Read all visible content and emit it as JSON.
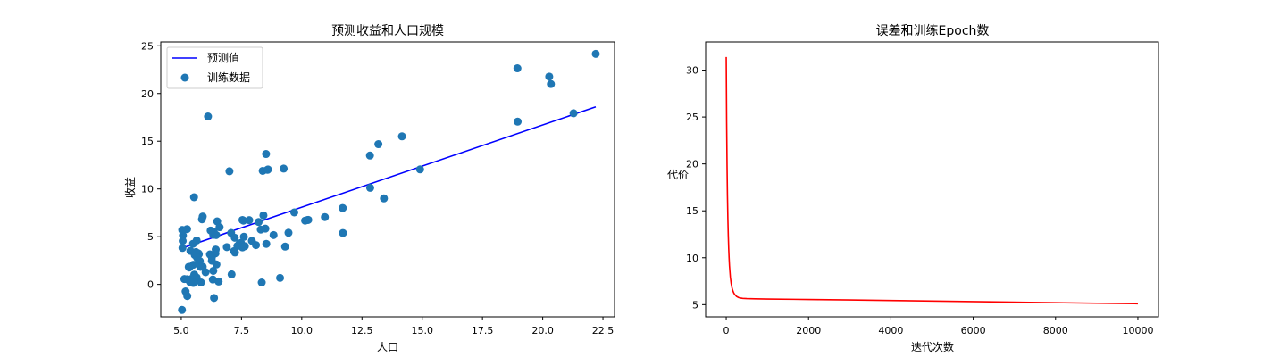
{
  "chart_data": [
    {
      "type": "scatter",
      "title": "预测收益和人口规模",
      "xlabel": "人口",
      "ylabel": "收益",
      "xlim": [
        4.15,
        22.98
      ],
      "ylim": [
        -3.4,
        25.4
      ],
      "xticks": [
        "5.0",
        "7.5",
        "10.0",
        "12.5",
        "15.0",
        "17.5",
        "20.0",
        "22.5"
      ],
      "yticks": [
        "0",
        "5",
        "10",
        "15",
        "20",
        "25"
      ],
      "legend": {
        "location": "upper-left",
        "entries": [
          "预测值",
          "训练数据"
        ]
      },
      "colors": {
        "line": "#0000ff",
        "scatter": "#1f77b4"
      },
      "series": [
        {
          "name": "预测值",
          "kind": "line",
          "x": [
            5.03,
            22.2
          ],
          "y": [
            3.8,
            18.6
          ]
        },
        {
          "name": "训练数据",
          "kind": "scatter",
          "x": [
            6.11,
            5.53,
            8.52,
            7.0,
            5.86,
            8.38,
            7.48,
            8.58,
            6.49,
            5.05,
            5.71,
            14.16,
            5.73,
            8.41,
            5.64,
            5.38,
            6.37,
            5.13,
            6.43,
            7.07,
            6.19,
            20.27,
            5.49,
            6.33,
            5.56,
            18.95,
            12.83,
            10.96,
            13.18,
            22.2,
            5.25,
            6.59,
            9.25,
            5.89,
            8.21,
            7.93,
            8.1,
            5.61,
            12.84,
            6.35,
            5.41,
            6.89,
            11.71,
            5.77,
            7.82,
            7.09,
            5.07,
            5.8,
            11.7,
            5.54,
            7.54,
            5.31,
            7.42,
            7.6,
            6.33,
            6.36,
            6.27,
            5.64,
            9.31,
            9.45,
            8.83,
            5.18,
            21.28,
            14.91,
            18.96,
            7.22,
            8.3,
            7.19,
            10.27,
            5.5,
            20.34,
            10.14,
            7.33,
            6.01,
            7.23,
            5.03,
            6.55,
            7.54,
            5.04,
            10.24,
            5.5,
            5.31,
            5.82,
            9.1,
            6.31,
            5.33,
            5.66,
            8.53,
            6.46,
            5.37,
            5.24,
            6.42,
            5.24,
            6.27,
            7.58,
            5.06,
            8.34,
            9.69,
            8.6,
            6.45,
            13.41,
            6.22,
            5.89,
            7.64,
            8.49
          ],
          "y": [
            17.59,
            9.13,
            13.66,
            11.85,
            6.82,
            11.89,
            4.35,
            12.0,
            6.6,
            3.82,
            3.25,
            15.51,
            3.16,
            7.23,
            0.72,
            3.51,
            5.3,
            0.56,
            3.65,
            5.39,
            3.14,
            21.77,
            4.26,
            5.19,
            3.08,
            22.64,
            13.5,
            7.05,
            14.69,
            24.15,
            -1.22,
            5.99,
            12.13,
            1.85,
            6.54,
            4.56,
            4.12,
            3.39,
            10.12,
            5.5,
            0.56,
            3.91,
            5.38,
            2.44,
            6.73,
            1.05,
            5.13,
            1.84,
            8.0,
            1.02,
            6.75,
            1.84,
            4.29,
            4.99,
            1.42,
            -1.42,
            2.48,
            4.6,
            3.96,
            5.41,
            5.17,
            -0.74,
            17.93,
            12.05,
            17.05,
            4.89,
            5.74,
            3.49,
            6.76,
            0.15,
            20.99,
            6.68,
            4.03,
            1.28,
            3.34,
            -2.68,
            0.3,
            3.88,
            5.7,
            6.75,
            2.06,
            0.48,
            0.2,
            0.68,
            0.51,
            1.77,
            2.78,
            4.25,
            2.09,
            0.23,
            5.79,
            3.25,
            0.54,
            2.85,
            6.68,
            4.56,
            0.2,
            7.54,
            12.04,
            5.17,
            9.01,
            5.64,
            7.11,
            4.0,
            5.84
          ]
        }
      ]
    },
    {
      "type": "line",
      "title": "误差和训练Epoch数",
      "xlabel": "迭代次数",
      "ylabel": "代价",
      "xlim": [
        -500,
        10500
      ],
      "ylim": [
        3.7,
        33.0
      ],
      "xticks": [
        "0",
        "2000",
        "4000",
        "6000",
        "8000",
        "10000"
      ],
      "yticks": [
        "5",
        "10",
        "15",
        "20",
        "25",
        "30"
      ],
      "colors": {
        "line": "#ff0000"
      },
      "series": [
        {
          "kind": "line",
          "x": [
            0,
            10,
            20,
            30,
            40,
            50,
            60,
            70,
            80,
            100,
            120,
            140,
            160,
            180,
            200,
            250,
            300,
            350,
            400,
            500,
            700,
            1000,
            2000,
            3000,
            4000,
            5000,
            6000,
            7000,
            8000,
            9000,
            10000
          ],
          "y": [
            31.4,
            24.5,
            19.9,
            16.6,
            14.2,
            12.4,
            11.0,
            9.95,
            9.1,
            7.95,
            7.25,
            6.8,
            6.5,
            6.28,
            6.12,
            5.88,
            5.76,
            5.7,
            5.67,
            5.64,
            5.62,
            5.6,
            5.55,
            5.5,
            5.44,
            5.38,
            5.32,
            5.26,
            5.21,
            5.15,
            5.1
          ]
        }
      ]
    }
  ]
}
